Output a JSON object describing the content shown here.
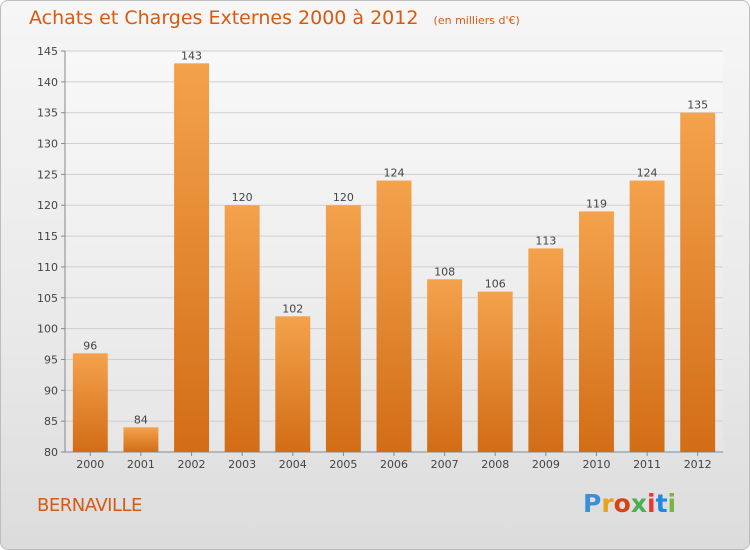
{
  "header": {
    "title": "Achats et Charges Externes 2000 à 2012",
    "unit": "(en milliers d'€)"
  },
  "footer": {
    "town": "BERNAVILLE",
    "brand": "Proxiti",
    "brand_colors": [
      "#3b8fd6",
      "#e8a21c",
      "#d84315",
      "#4caf50",
      "#e53935",
      "#1e88e5",
      "#7cb342"
    ]
  },
  "chart_data": {
    "type": "bar",
    "categories": [
      "2000",
      "2001",
      "2002",
      "2003",
      "2004",
      "2005",
      "2006",
      "2007",
      "2008",
      "2009",
      "2010",
      "2011",
      "2012"
    ],
    "values": [
      96,
      84,
      143,
      120,
      102,
      120,
      124,
      108,
      106,
      113,
      119,
      124,
      135
    ],
    "ylim": [
      80,
      145
    ],
    "yticks": [
      80,
      85,
      90,
      95,
      100,
      105,
      110,
      115,
      120,
      125,
      130,
      135,
      140,
      145
    ],
    "grid": true,
    "bar_color": "#f08a2c"
  }
}
